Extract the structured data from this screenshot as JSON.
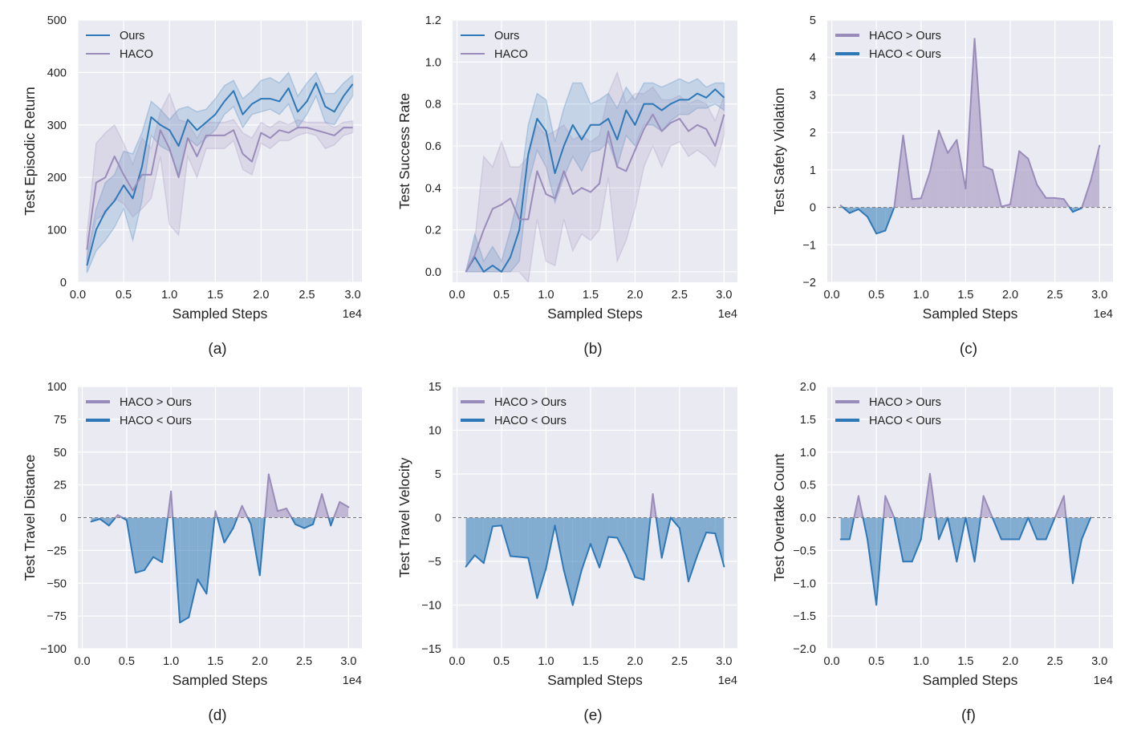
{
  "colors": {
    "ours": "#2e78b7",
    "haco": "#9a8cba",
    "plot_bg": "#eaeaf2",
    "grid": "#ffffff",
    "baseline": "#777777"
  },
  "chart_data": [
    {
      "id": "a",
      "type": "line",
      "caption": "(a)",
      "xlabel": "Sampled Steps",
      "ylabel": "Test Episodic Return",
      "x_offset_label": "1e4",
      "xlim": [
        0,
        3.1
      ],
      "ylim": [
        0,
        500
      ],
      "xticks": [
        0,
        0.5,
        1.0,
        1.5,
        2.0,
        2.5,
        3.0
      ],
      "xtick_labels": [
        "0.0",
        "0.5",
        "1.0",
        "1.5",
        "2.0",
        "2.5",
        "3.0"
      ],
      "yticks": [
        0,
        100,
        200,
        300,
        400,
        500
      ],
      "ytick_labels": [
        "0",
        "100",
        "200",
        "300",
        "400",
        "500"
      ],
      "legend": [
        "Ours",
        "HACO"
      ],
      "x": [
        0.1,
        0.2,
        0.3,
        0.4,
        0.5,
        0.6,
        0.7,
        0.8,
        0.9,
        1.0,
        1.1,
        1.2,
        1.3,
        1.4,
        1.5,
        1.6,
        1.7,
        1.8,
        1.9,
        2.0,
        2.1,
        2.2,
        2.3,
        2.4,
        2.5,
        2.6,
        2.7,
        2.8,
        2.9,
        3.0
      ],
      "series": [
        {
          "name": "Ours",
          "values": [
            32,
            100,
            135,
            155,
            185,
            160,
            220,
            315,
            300,
            290,
            260,
            310,
            290,
            305,
            320,
            345,
            365,
            320,
            340,
            350,
            350,
            345,
            370,
            325,
            345,
            380,
            335,
            325,
            355,
            378
          ],
          "lower": [
            18,
            60,
            80,
            105,
            140,
            80,
            155,
            280,
            260,
            250,
            205,
            275,
            260,
            275,
            290,
            320,
            335,
            295,
            320,
            325,
            330,
            320,
            340,
            295,
            320,
            355,
            305,
            300,
            330,
            355
          ],
          "upper": [
            48,
            140,
            190,
            205,
            250,
            245,
            285,
            345,
            330,
            310,
            330,
            335,
            325,
            330,
            350,
            375,
            385,
            350,
            365,
            385,
            390,
            380,
            400,
            355,
            380,
            400,
            360,
            360,
            380,
            395
          ]
        },
        {
          "name": "HACO",
          "values": [
            62,
            190,
            200,
            240,
            205,
            175,
            205,
            205,
            290,
            255,
            200,
            275,
            240,
            280,
            280,
            280,
            290,
            245,
            230,
            285,
            275,
            290,
            285,
            295,
            295,
            290,
            285,
            280,
            295,
            295
          ],
          "lower": [
            40,
            120,
            130,
            160,
            150,
            125,
            140,
            160,
            240,
            110,
            90,
            240,
            200,
            255,
            255,
            255,
            270,
            215,
            205,
            265,
            255,
            270,
            270,
            280,
            285,
            280,
            255,
            262,
            280,
            285
          ],
          "upper": [
            90,
            265,
            285,
            300,
            265,
            225,
            275,
            255,
            325,
            360,
            310,
            305,
            275,
            305,
            305,
            305,
            310,
            285,
            275,
            305,
            295,
            308,
            300,
            310,
            305,
            305,
            305,
            295,
            305,
            308
          ]
        }
      ]
    },
    {
      "id": "b",
      "type": "line",
      "caption": "(b)",
      "xlabel": "Sampled Steps",
      "ylabel": "Test Success Rate",
      "x_offset_label": "1e4",
      "xlim": [
        -0.05,
        3.15
      ],
      "ylim": [
        -0.05,
        1.2
      ],
      "xticks": [
        0,
        0.5,
        1.0,
        1.5,
        2.0,
        2.5,
        3.0
      ],
      "xtick_labels": [
        "0.0",
        "0.5",
        "1.0",
        "1.5",
        "2.0",
        "2.5",
        "3.0"
      ],
      "yticks": [
        0,
        0.2,
        0.4,
        0.6,
        0.8,
        1.0,
        1.2
      ],
      "ytick_labels": [
        "0.0",
        "0.2",
        "0.4",
        "0.6",
        "0.8",
        "1.0",
        "1.2"
      ],
      "legend": [
        "Ours",
        "HACO"
      ],
      "x": [
        0.1,
        0.2,
        0.3,
        0.4,
        0.5,
        0.6,
        0.7,
        0.8,
        0.9,
        1.0,
        1.1,
        1.2,
        1.3,
        1.4,
        1.5,
        1.6,
        1.7,
        1.8,
        1.9,
        2.0,
        2.1,
        2.2,
        2.3,
        2.4,
        2.5,
        2.6,
        2.7,
        2.8,
        2.9,
        3.0
      ],
      "series": [
        {
          "name": "Ours",
          "values": [
            0.0,
            0.07,
            0.0,
            0.03,
            0.0,
            0.07,
            0.2,
            0.56,
            0.73,
            0.67,
            0.47,
            0.6,
            0.7,
            0.63,
            0.7,
            0.7,
            0.73,
            0.63,
            0.77,
            0.7,
            0.8,
            0.8,
            0.77,
            0.8,
            0.82,
            0.82,
            0.85,
            0.83,
            0.87,
            0.83
          ],
          "lower": [
            0.0,
            0.0,
            0.0,
            0.0,
            0.0,
            0.0,
            0.05,
            0.42,
            0.58,
            0.5,
            0.33,
            0.45,
            0.55,
            0.48,
            0.57,
            0.58,
            0.62,
            0.5,
            0.65,
            0.6,
            0.7,
            0.7,
            0.67,
            0.72,
            0.75,
            0.75,
            0.78,
            0.78,
            0.8,
            0.77
          ],
          "upper": [
            0.0,
            0.18,
            0.05,
            0.12,
            0.05,
            0.2,
            0.38,
            0.7,
            0.85,
            0.82,
            0.62,
            0.78,
            0.9,
            0.9,
            0.8,
            0.82,
            0.85,
            0.78,
            0.88,
            0.82,
            0.9,
            0.9,
            0.88,
            0.9,
            0.92,
            0.9,
            0.92,
            0.88,
            0.9,
            0.9
          ]
        },
        {
          "name": "HACO",
          "values": [
            0.0,
            0.08,
            0.2,
            0.3,
            0.32,
            0.35,
            0.25,
            0.25,
            0.48,
            0.37,
            0.35,
            0.48,
            0.37,
            0.4,
            0.38,
            0.42,
            0.67,
            0.5,
            0.48,
            0.58,
            0.68,
            0.75,
            0.67,
            0.71,
            0.73,
            0.67,
            0.7,
            0.68,
            0.6,
            0.75
          ],
          "lower": [
            0.0,
            0.0,
            0.0,
            0.0,
            0.0,
            0.0,
            0.0,
            -0.05,
            0.25,
            0.05,
            0.03,
            0.25,
            0.1,
            0.18,
            0.15,
            0.2,
            0.45,
            0.05,
            0.15,
            0.3,
            0.5,
            0.6,
            0.5,
            0.6,
            0.62,
            0.55,
            0.58,
            0.55,
            0.5,
            0.65
          ],
          "upper": [
            0.0,
            0.15,
            0.55,
            0.5,
            0.62,
            0.5,
            0.5,
            0.55,
            0.7,
            0.65,
            0.67,
            0.7,
            0.63,
            0.65,
            0.62,
            0.65,
            0.85,
            0.95,
            0.8,
            0.85,
            0.85,
            0.88,
            0.82,
            0.82,
            0.84,
            0.8,
            0.82,
            0.8,
            0.72,
            0.84
          ]
        }
      ]
    },
    {
      "id": "c",
      "type": "area",
      "caption": "(c)",
      "xlabel": "Sampled Steps",
      "ylabel": "Test Safety Violation",
      "x_offset_label": "1e4",
      "xlim": [
        -0.05,
        3.15
      ],
      "ylim": [
        -2,
        5
      ],
      "xticks": [
        0,
        0.5,
        1.0,
        1.5,
        2.0,
        2.5,
        3.0
      ],
      "xtick_labels": [
        "0.0",
        "0.5",
        "1.0",
        "1.5",
        "2.0",
        "2.5",
        "3.0"
      ],
      "yticks": [
        -2,
        -1,
        0,
        1,
        2,
        3,
        4,
        5
      ],
      "ytick_labels": [
        "−2",
        "−1",
        "0",
        "1",
        "2",
        "3",
        "4",
        "5"
      ],
      "legend": [
        "HACO > Ours",
        "HACO < Ours"
      ],
      "x": [
        0.1,
        0.2,
        0.3,
        0.4,
        0.5,
        0.6,
        0.7,
        0.8,
        0.9,
        1.0,
        1.1,
        1.2,
        1.3,
        1.4,
        1.5,
        1.6,
        1.7,
        1.8,
        1.9,
        2.0,
        2.1,
        2.2,
        2.3,
        2.4,
        2.5,
        2.6,
        2.7,
        2.8,
        2.9,
        3.0
      ],
      "values": [
        0.05,
        -0.15,
        -0.05,
        -0.25,
        -0.7,
        -0.62,
        0.0,
        1.92,
        0.22,
        0.24,
        0.95,
        2.05,
        1.45,
        1.8,
        0.5,
        4.5,
        1.1,
        1.0,
        0.02,
        0.08,
        1.5,
        1.3,
        0.6,
        0.25,
        0.25,
        0.22,
        -0.12,
        -0.02,
        0.7,
        1.65
      ]
    },
    {
      "id": "d",
      "type": "area",
      "caption": "(d)",
      "xlabel": "Sampled Steps",
      "ylabel": "Test Travel Distance",
      "x_offset_label": "1e4",
      "xlim": [
        -0.05,
        3.15
      ],
      "ylim": [
        -100,
        100
      ],
      "xticks": [
        0,
        0.5,
        1.0,
        1.5,
        2.0,
        2.5,
        3.0
      ],
      "xtick_labels": [
        "0.0",
        "0.5",
        "1.0",
        "1.5",
        "2.0",
        "2.5",
        "3.0"
      ],
      "yticks": [
        -100,
        -75,
        -50,
        -25,
        0,
        25,
        50,
        75,
        100
      ],
      "ytick_labels": [
        "−100",
        "−75",
        "−50",
        "−25",
        "0",
        "25",
        "50",
        "75",
        "100"
      ],
      "legend": [
        "HACO > Ours",
        "HACO < Ours"
      ],
      "x": [
        0.1,
        0.2,
        0.3,
        0.4,
        0.5,
        0.6,
        0.7,
        0.8,
        0.9,
        1.0,
        1.1,
        1.2,
        1.3,
        1.4,
        1.5,
        1.6,
        1.7,
        1.8,
        1.9,
        2.0,
        2.1,
        2.2,
        2.3,
        2.4,
        2.5,
        2.6,
        2.7,
        2.8,
        2.9,
        3.0
      ],
      "values": [
        -3,
        -1,
        -6,
        2,
        -2,
        -42,
        -40,
        -30,
        -34,
        20,
        -80,
        -76,
        -47,
        -58,
        5,
        -19,
        -8,
        9,
        -5,
        -44,
        33,
        5,
        7,
        -5,
        -8,
        -5,
        18,
        -6,
        12,
        8
      ]
    },
    {
      "id": "e",
      "type": "area",
      "caption": "(e)",
      "xlabel": "Sampled Steps",
      "ylabel": "Test Travel Velocity",
      "x_offset_label": "1e4",
      "xlim": [
        -0.05,
        3.15
      ],
      "ylim": [
        -15,
        15
      ],
      "xticks": [
        0,
        0.5,
        1.0,
        1.5,
        2.0,
        2.5,
        3.0
      ],
      "xtick_labels": [
        "0.0",
        "0.5",
        "1.0",
        "1.5",
        "2.0",
        "2.5",
        "3.0"
      ],
      "yticks": [
        -15,
        -10,
        -5,
        0,
        5,
        10,
        15
      ],
      "ytick_labels": [
        "−15",
        "−10",
        "−5",
        "0",
        "5",
        "10",
        "15"
      ],
      "legend": [
        "HACO > Ours",
        "HACO < Ours"
      ],
      "x": [
        0.1,
        0.2,
        0.3,
        0.4,
        0.5,
        0.6,
        0.7,
        0.8,
        0.9,
        1.0,
        1.1,
        1.2,
        1.3,
        1.4,
        1.5,
        1.6,
        1.7,
        1.8,
        1.9,
        2.0,
        2.1,
        2.2,
        2.3,
        2.4,
        2.5,
        2.6,
        2.7,
        2.8,
        2.9,
        3.0
      ],
      "values": [
        -5.6,
        -4.3,
        -5.2,
        -1.0,
        -0.9,
        -4.4,
        -4.5,
        -4.6,
        -9.2,
        -5.8,
        -0.9,
        -6.0,
        -10.0,
        -6.0,
        -3.0,
        -5.7,
        -2.2,
        -2.3,
        -4.3,
        -6.8,
        -7.1,
        2.7,
        -4.6,
        0.0,
        -1.2,
        -7.3,
        -4.3,
        -1.7,
        -1.8,
        -5.6
      ]
    },
    {
      "id": "f",
      "type": "area",
      "caption": "(f)",
      "xlabel": "Sampled Steps",
      "ylabel": "Test Overtake Count",
      "x_offset_label": "1e4",
      "xlim": [
        -0.05,
        3.15
      ],
      "ylim": [
        -2.0,
        2.0
      ],
      "xticks": [
        0,
        0.5,
        1.0,
        1.5,
        2.0,
        2.5,
        3.0
      ],
      "xtick_labels": [
        "0.0",
        "0.5",
        "1.0",
        "1.5",
        "2.0",
        "2.5",
        "3.0"
      ],
      "yticks": [
        -2.0,
        -1.5,
        -1.0,
        -0.5,
        0.0,
        0.5,
        1.0,
        1.5,
        2.0
      ],
      "ytick_labels": [
        "−2.0",
        "−1.5",
        "−1.0",
        "−0.5",
        "0.0",
        "0.5",
        "1.0",
        "1.5",
        "2.0"
      ],
      "legend": [
        "HACO > Ours",
        "HACO < Ours"
      ],
      "x": [
        0.1,
        0.2,
        0.3,
        0.4,
        0.5,
        0.6,
        0.7,
        0.8,
        0.9,
        1.0,
        1.1,
        1.2,
        1.3,
        1.4,
        1.5,
        1.6,
        1.7,
        1.8,
        1.9,
        2.0,
        2.1,
        2.2,
        2.3,
        2.4,
        2.5,
        2.6,
        2.7,
        2.8,
        2.9
      ],
      "values": [
        -0.33,
        -0.33,
        0.33,
        -0.33,
        -1.33,
        0.33,
        0.0,
        -0.67,
        -0.67,
        -0.33,
        0.67,
        -0.33,
        0.0,
        -0.67,
        0.0,
        -0.67,
        0.33,
        0.0,
        -0.33,
        -0.33,
        -0.33,
        0.0,
        -0.33,
        -0.33,
        0.0,
        0.33,
        -1.0,
        -0.33,
        0.0
      ]
    }
  ]
}
